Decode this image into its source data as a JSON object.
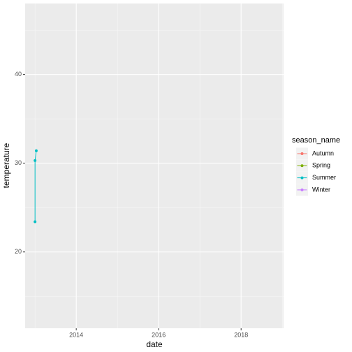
{
  "chart_data": {
    "type": "line",
    "x_label": "date",
    "y_label": "temperature",
    "legend_title": "season_name",
    "legend_position": "right",
    "xlim": [
      2012.76,
      2019.03
    ],
    "xticks": [
      2014,
      2016,
      2018
    ],
    "ylim": [
      11.4,
      48.0
    ],
    "yticks": [
      20,
      30,
      40
    ],
    "grid": true,
    "series": [
      {
        "name": "Autumn",
        "color": "#F8766D",
        "x": [],
        "values": []
      },
      {
        "name": "Spring",
        "color": "#7CAE00",
        "x": [],
        "values": []
      },
      {
        "name": "Summer",
        "color": "#00BFC4",
        "x": [
          2013.0,
          2013.0,
          2013.03
        ],
        "values": [
          23.4,
          30.3,
          31.4
        ]
      },
      {
        "name": "Winter",
        "color": "#C77CFF",
        "x": [],
        "values": []
      }
    ]
  }
}
